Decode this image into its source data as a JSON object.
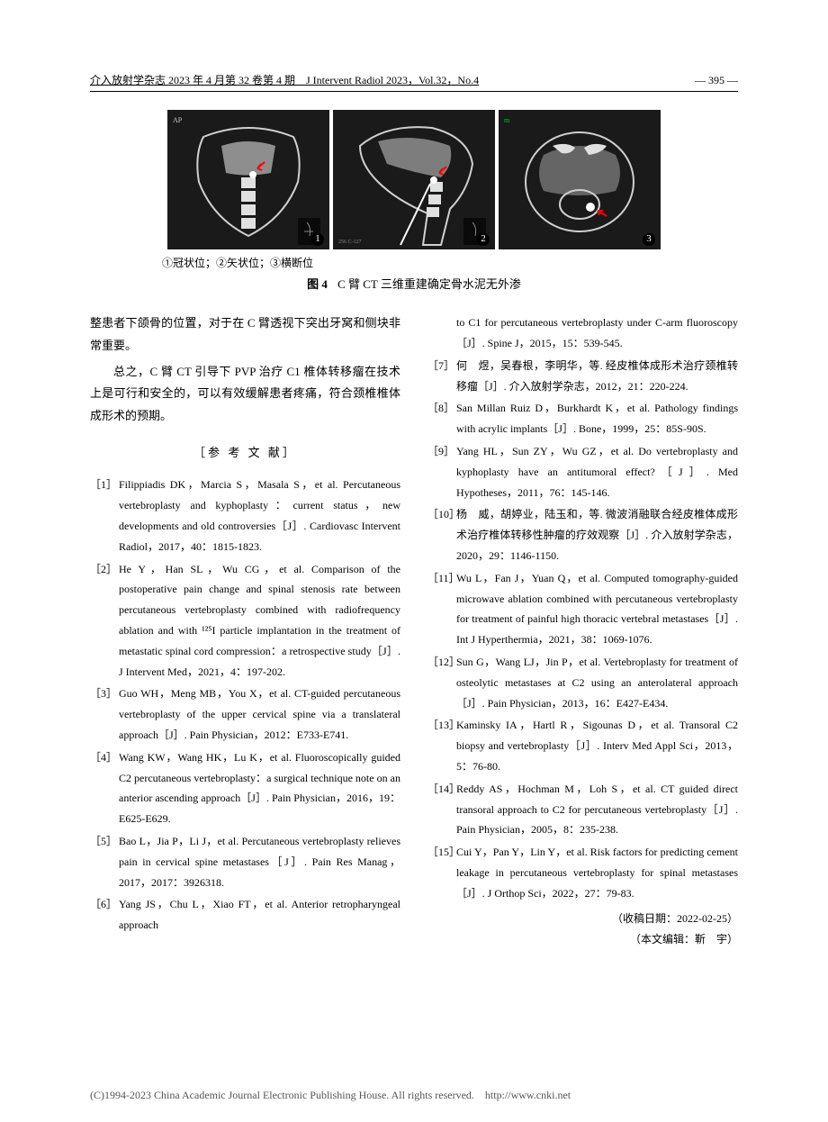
{
  "header": {
    "journal_info": "介入放射学杂志 2023 年 4 月第 32 卷第 4 期　J Intervent Radiol 2023，Vol.32，No.4",
    "page_number": "395"
  },
  "figure": {
    "labels": "①冠状位；②矢状位；③横断位",
    "fig_label": "图 4",
    "caption": "C 臂 CT 三维重建确定骨水泥无外渗",
    "image_numbers": [
      "1",
      "2",
      "3"
    ],
    "ct_style": {
      "bg_color": "#1a1a1a",
      "bone_color": "#e8e8e8",
      "arrow_color": "#ff0000"
    }
  },
  "body": {
    "para1": "整患者下颌骨的位置，对于在 C 臂透视下突出牙窝和侧块非常重要。",
    "para2": "总之，C 臂 CT 引导下 PVP 治疗 C1 椎体转移瘤在技术上是可行和安全的，可以有效缓解患者疼痛，符合颈椎椎体成形术的预期。"
  },
  "references": {
    "header": "［参 考 文 献］",
    "left": [
      {
        "num": "［1］",
        "text": "Filippiadis DK，Marcia S，Masala S，et al. Percutaneous vertebro­plasty and kyphoplasty：current status，new developments and old controversies［J］. Cardiovasc Intervent Radiol，2017，40：1815-1823."
      },
      {
        "num": "［2］",
        "text": "He Y，Han SL，Wu CG，et al. Comparison of the postoperative pain change and spinal stenosis rate between percutaneous vertebro­plasty combined with radiofrequency ablation and with ¹²⁵I particle implantation in the treatment of metastatic spinal cord compression：a retrospective study［J］. J Intervent Med，2021，4：197-202."
      },
      {
        "num": "［3］",
        "text": "Guo WH，Meng MB，You X，et al. CT-guided percutaneous vertebroplasty of the upper cervical spine via a translateral approach［J］. Pain Physician，2012：E733-E741."
      },
      {
        "num": "［4］",
        "text": "Wang KW，Wang HK，Lu K，et al. Fluoroscopically guided C2 percutaneous vertebroplasty：a surgical technique note on an anterior ascending approach［J］. Pain Physician，2016，19：E625-E629."
      },
      {
        "num": "［5］",
        "text": "Bao L，Jia P，Li J，et al. Percutaneous vertebroplasty relieves pain in cervical spine metastases［J］. Pain Res Manag，2017，2017：3926318."
      },
      {
        "num": "［6］",
        "text": "Yang JS，Chu L，Xiao FT，et al. Anterior retropharyngeal approach"
      }
    ],
    "right": [
      {
        "num": "",
        "text": "to C1 for percutaneous vertebroplasty under C-arm fluoroscopy［J］. Spine J，2015，15：539-545."
      },
      {
        "num": "［7］",
        "text": "何　煜，吴春根，李明华，等. 经皮椎体成形术治疗颈椎转移瘤［J］. 介入放射学杂志，2012，21：220-224."
      },
      {
        "num": "［8］",
        "text": "San Millan Ruiz D，Burkhardt K，et al. Pathology findings with acrylic implants［J］. Bone，1999，25：85S-90S."
      },
      {
        "num": "［9］",
        "text": "Yang HL，Sun ZY，Wu GZ，et al. Do vertebroplasty and kyphoplasty have an antitumoral effect?［J］. Med Hypotheses，2011，76：145-146."
      },
      {
        "num": "［10］",
        "text": "杨　威，胡婷业，陆玉和，等. 微波消融联合经皮椎体成形术治疗椎体转移性肿瘤的疗效观察［J］. 介入放射学杂志，2020，29：1146-1150."
      },
      {
        "num": "［11］",
        "text": "Wu L，Fan J，Yuan Q，et al. Computed tomography-guided microwave ablation combined with percutaneous vertebroplasty for treatment of painful high thoracic vertebral metastases［J］. Int J Hyperthermia，2021，38：1069-1076."
      },
      {
        "num": "［12］",
        "text": "Sun G，Wang LJ，Jin P，et al. Vertebroplasty for treatment of osteolytic metastases at C2 using an anterolateral approach［J］. Pain Physician，2013，16：E427-E434."
      },
      {
        "num": "［13］",
        "text": "Kaminsky IA，Hartl R，Sigounas D，et al. Transoral C2 biopsy and vertebroplasty［J］. Interv Med Appl Sci，2013，5：76-80."
      },
      {
        "num": "［14］",
        "text": "Reddy AS，Hochman M，Loh S，et al. CT guided direct transoral approach to C2 for percutaneous vertebroplasty［J］. Pain Physician，2005，8：235-238."
      },
      {
        "num": "［15］",
        "text": "Cui Y，Pan Y，Lin Y，et al. Risk factors for predicting cement leakage in percutaneous vertebroplasty for spinal metastases［J］. J Orthop Sci，2022，27：79-83."
      }
    ]
  },
  "footer": {
    "received_date": "（收稿日期：2022-02-25）",
    "editor": "（本文编辑：靳　宇）"
  },
  "copyright": "(C)1994-2023 China Academic Journal Electronic Publishing House. All rights reserved.　http://www.cnki.net"
}
